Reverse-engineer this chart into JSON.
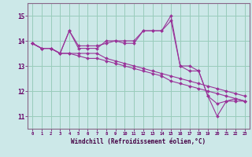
{
  "xlabel": "Windchill (Refroidissement éolien,°C)",
  "background_color": "#cce8e8",
  "grid_color": "#99ccbb",
  "line_color": "#993399",
  "spine_color": "#886688",
  "xlim": [
    -0.5,
    23.5
  ],
  "ylim": [
    10.5,
    15.5
  ],
  "yticks": [
    11,
    12,
    13,
    14,
    15
  ],
  "xticks": [
    0,
    1,
    2,
    3,
    4,
    5,
    6,
    7,
    8,
    9,
    10,
    11,
    12,
    13,
    14,
    15,
    16,
    17,
    18,
    19,
    20,
    21,
    22,
    23
  ],
  "series": [
    [
      13.9,
      13.7,
      13.7,
      13.5,
      14.4,
      13.8,
      13.8,
      13.8,
      13.9,
      14.0,
      13.9,
      13.9,
      14.4,
      14.4,
      14.4,
      15.0,
      13.0,
      13.0,
      12.8,
      11.8,
      11.0,
      11.6,
      11.7,
      11.6
    ],
    [
      13.9,
      13.7,
      13.7,
      13.5,
      14.4,
      13.7,
      13.7,
      13.7,
      14.0,
      14.0,
      14.0,
      14.0,
      14.4,
      14.4,
      14.4,
      14.8,
      13.0,
      12.8,
      12.8,
      11.8,
      11.5,
      11.6,
      11.6,
      11.6
    ],
    [
      13.9,
      13.7,
      13.7,
      13.5,
      13.5,
      13.5,
      13.5,
      13.5,
      13.3,
      13.2,
      13.1,
      13.0,
      12.9,
      12.8,
      12.7,
      12.6,
      12.5,
      12.4,
      12.3,
      12.2,
      12.1,
      12.0,
      11.9,
      11.8
    ],
    [
      13.9,
      13.7,
      13.7,
      13.5,
      13.5,
      13.4,
      13.3,
      13.3,
      13.2,
      13.1,
      13.0,
      12.9,
      12.8,
      12.7,
      12.6,
      12.4,
      12.3,
      12.2,
      12.1,
      12.0,
      11.9,
      11.8,
      11.7,
      11.6
    ]
  ]
}
